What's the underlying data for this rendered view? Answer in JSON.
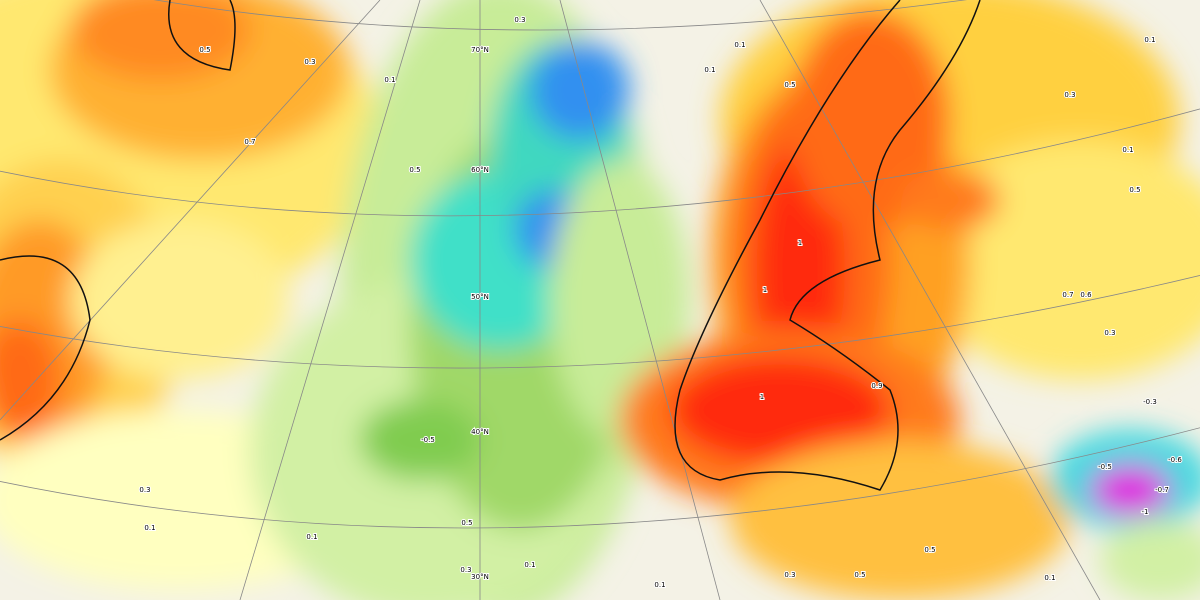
{
  "latitude_labels": [
    "70°N",
    "60°N",
    "50°N",
    "40°N",
    "30°N"
  ],
  "contour_labels": [
    "0.3",
    "0.1",
    "0.7",
    "0.3",
    "0.5",
    "0.3",
    "0.1",
    "0.1",
    "0.5",
    "0.3",
    "0.1",
    "0.1",
    "0.3",
    "0.5",
    "0.5",
    "0.1",
    "0.5",
    "0.7",
    "0.6",
    "0.3",
    "0.1",
    "0.3",
    "0.5",
    "0.1",
    "0.1",
    "-0.3",
    "-0.5",
    "-0.6",
    "-0.7",
    "-1",
    "1",
    "1",
    "1",
    "0.9",
    "0.1",
    "-0.5",
    "0.5"
  ]
}
